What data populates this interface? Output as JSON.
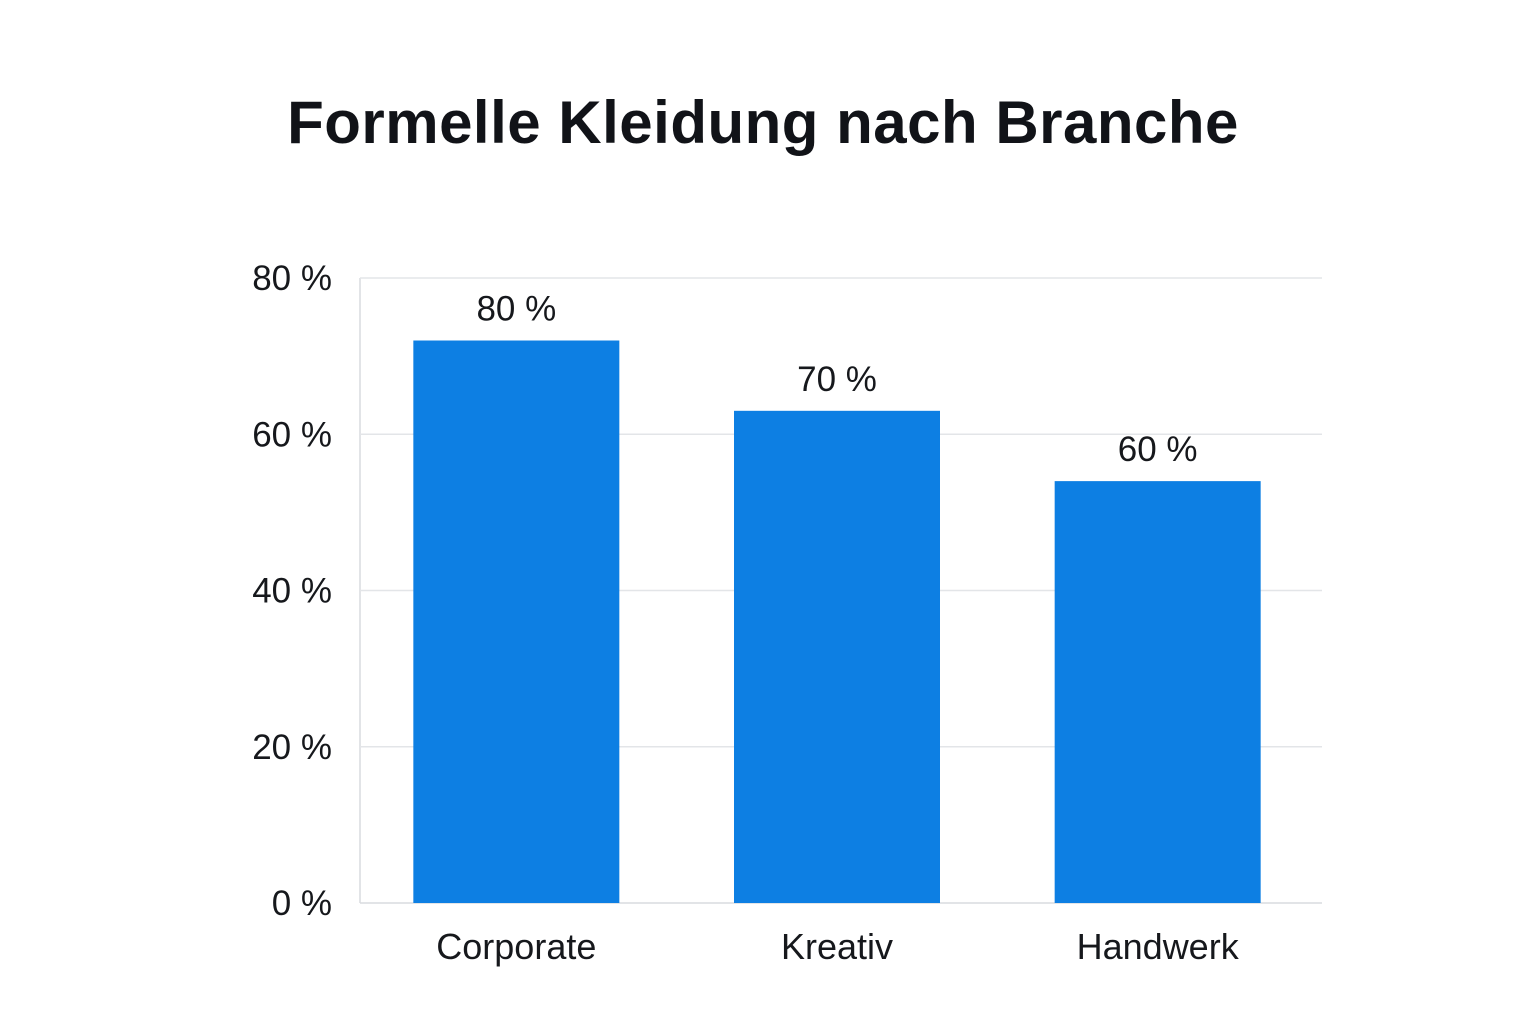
{
  "chart_data": {
    "type": "bar",
    "title": "Formelle Kleidung nach Branche",
    "categories": [
      "Corporate",
      "Kreativ",
      "Handwerk"
    ],
    "values": [
      80,
      70,
      60
    ],
    "value_labels": [
      "80 %",
      "70 %",
      "60 %"
    ],
    "y_ticks": [
      0,
      20,
      40,
      60,
      80
    ],
    "y_tick_labels": [
      "0 %",
      "20 %",
      "40 %",
      "60 %",
      "80 %"
    ],
    "ylim": [
      0,
      80
    ],
    "xlabel": "",
    "ylabel": "",
    "grid": true,
    "legend": "none",
    "colors": {
      "bar": "#0d7fe3",
      "grid": "#e3e5e8",
      "axis": "#d9dbdf",
      "text": "#16181c"
    }
  }
}
